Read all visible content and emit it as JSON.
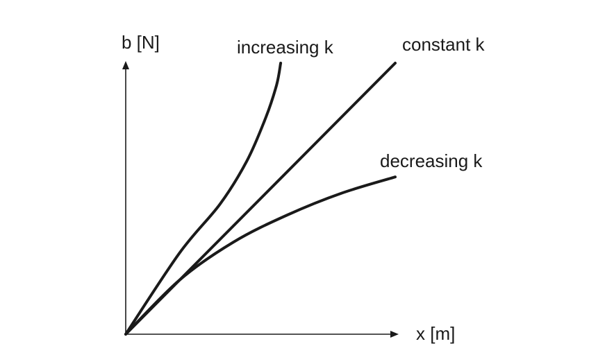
{
  "chart_data": {
    "type": "line",
    "title": "",
    "xlabel": "x [m]",
    "ylabel": "b [N]",
    "grid": false,
    "legend": "none",
    "series": [
      {
        "name": "increasing k",
        "x": [
          0,
          0.2,
          0.35,
          0.45,
          0.52,
          0.56,
          0.575
        ],
        "y": [
          0,
          0.3,
          0.48,
          0.64,
          0.8,
          0.92,
          1.0
        ]
      },
      {
        "name": "constant k",
        "x": [
          0,
          1.0
        ],
        "y": [
          0,
          1.0
        ]
      },
      {
        "name": "decreasing k",
        "x": [
          0,
          0.2,
          0.4,
          0.6,
          0.8,
          1.0
        ],
        "y": [
          0,
          0.2,
          0.34,
          0.44,
          0.52,
          0.58
        ]
      }
    ]
  }
}
